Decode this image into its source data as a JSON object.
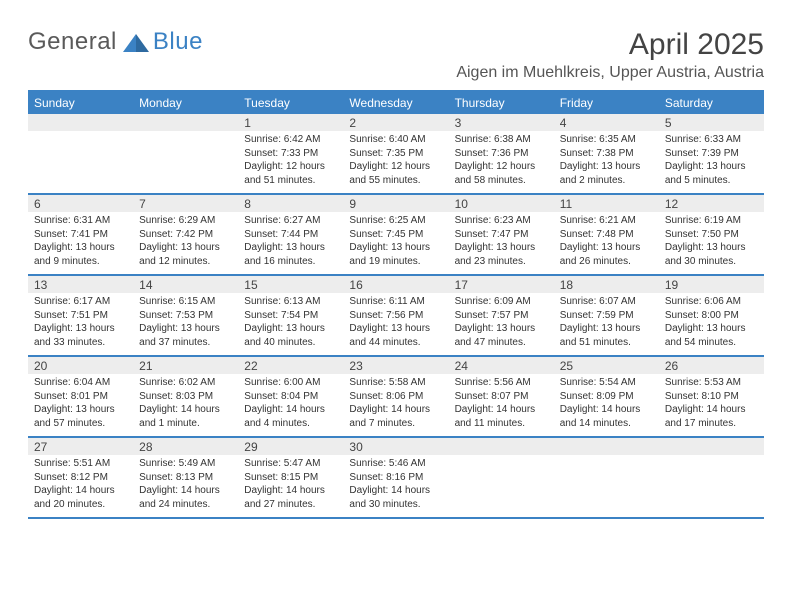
{
  "logo": {
    "part1": "General",
    "part2": "Blue"
  },
  "title": "April 2025",
  "location": "Aigen im Muehlkreis, Upper Austria, Austria",
  "colors": {
    "accent": "#3b82c4",
    "daynum_bg": "#ededed",
    "text": "#333333",
    "title_text": "#444444",
    "logo_gray": "#5a5a5a",
    "background": "#ffffff"
  },
  "daysOfWeek": [
    "Sunday",
    "Monday",
    "Tuesday",
    "Wednesday",
    "Thursday",
    "Friday",
    "Saturday"
  ],
  "grid": {
    "cols": 7,
    "rows": 5
  },
  "weeks": [
    [
      null,
      null,
      {
        "n": "1",
        "sr": "Sunrise: 6:42 AM",
        "ss": "Sunset: 7:33 PM",
        "dl": "Daylight: 12 hours and 51 minutes."
      },
      {
        "n": "2",
        "sr": "Sunrise: 6:40 AM",
        "ss": "Sunset: 7:35 PM",
        "dl": "Daylight: 12 hours and 55 minutes."
      },
      {
        "n": "3",
        "sr": "Sunrise: 6:38 AM",
        "ss": "Sunset: 7:36 PM",
        "dl": "Daylight: 12 hours and 58 minutes."
      },
      {
        "n": "4",
        "sr": "Sunrise: 6:35 AM",
        "ss": "Sunset: 7:38 PM",
        "dl": "Daylight: 13 hours and 2 minutes."
      },
      {
        "n": "5",
        "sr": "Sunrise: 6:33 AM",
        "ss": "Sunset: 7:39 PM",
        "dl": "Daylight: 13 hours and 5 minutes."
      }
    ],
    [
      {
        "n": "6",
        "sr": "Sunrise: 6:31 AM",
        "ss": "Sunset: 7:41 PM",
        "dl": "Daylight: 13 hours and 9 minutes."
      },
      {
        "n": "7",
        "sr": "Sunrise: 6:29 AM",
        "ss": "Sunset: 7:42 PM",
        "dl": "Daylight: 13 hours and 12 minutes."
      },
      {
        "n": "8",
        "sr": "Sunrise: 6:27 AM",
        "ss": "Sunset: 7:44 PM",
        "dl": "Daylight: 13 hours and 16 minutes."
      },
      {
        "n": "9",
        "sr": "Sunrise: 6:25 AM",
        "ss": "Sunset: 7:45 PM",
        "dl": "Daylight: 13 hours and 19 minutes."
      },
      {
        "n": "10",
        "sr": "Sunrise: 6:23 AM",
        "ss": "Sunset: 7:47 PM",
        "dl": "Daylight: 13 hours and 23 minutes."
      },
      {
        "n": "11",
        "sr": "Sunrise: 6:21 AM",
        "ss": "Sunset: 7:48 PM",
        "dl": "Daylight: 13 hours and 26 minutes."
      },
      {
        "n": "12",
        "sr": "Sunrise: 6:19 AM",
        "ss": "Sunset: 7:50 PM",
        "dl": "Daylight: 13 hours and 30 minutes."
      }
    ],
    [
      {
        "n": "13",
        "sr": "Sunrise: 6:17 AM",
        "ss": "Sunset: 7:51 PM",
        "dl": "Daylight: 13 hours and 33 minutes."
      },
      {
        "n": "14",
        "sr": "Sunrise: 6:15 AM",
        "ss": "Sunset: 7:53 PM",
        "dl": "Daylight: 13 hours and 37 minutes."
      },
      {
        "n": "15",
        "sr": "Sunrise: 6:13 AM",
        "ss": "Sunset: 7:54 PM",
        "dl": "Daylight: 13 hours and 40 minutes."
      },
      {
        "n": "16",
        "sr": "Sunrise: 6:11 AM",
        "ss": "Sunset: 7:56 PM",
        "dl": "Daylight: 13 hours and 44 minutes."
      },
      {
        "n": "17",
        "sr": "Sunrise: 6:09 AM",
        "ss": "Sunset: 7:57 PM",
        "dl": "Daylight: 13 hours and 47 minutes."
      },
      {
        "n": "18",
        "sr": "Sunrise: 6:07 AM",
        "ss": "Sunset: 7:59 PM",
        "dl": "Daylight: 13 hours and 51 minutes."
      },
      {
        "n": "19",
        "sr": "Sunrise: 6:06 AM",
        "ss": "Sunset: 8:00 PM",
        "dl": "Daylight: 13 hours and 54 minutes."
      }
    ],
    [
      {
        "n": "20",
        "sr": "Sunrise: 6:04 AM",
        "ss": "Sunset: 8:01 PM",
        "dl": "Daylight: 13 hours and 57 minutes."
      },
      {
        "n": "21",
        "sr": "Sunrise: 6:02 AM",
        "ss": "Sunset: 8:03 PM",
        "dl": "Daylight: 14 hours and 1 minute."
      },
      {
        "n": "22",
        "sr": "Sunrise: 6:00 AM",
        "ss": "Sunset: 8:04 PM",
        "dl": "Daylight: 14 hours and 4 minutes."
      },
      {
        "n": "23",
        "sr": "Sunrise: 5:58 AM",
        "ss": "Sunset: 8:06 PM",
        "dl": "Daylight: 14 hours and 7 minutes."
      },
      {
        "n": "24",
        "sr": "Sunrise: 5:56 AM",
        "ss": "Sunset: 8:07 PM",
        "dl": "Daylight: 14 hours and 11 minutes."
      },
      {
        "n": "25",
        "sr": "Sunrise: 5:54 AM",
        "ss": "Sunset: 8:09 PM",
        "dl": "Daylight: 14 hours and 14 minutes."
      },
      {
        "n": "26",
        "sr": "Sunrise: 5:53 AM",
        "ss": "Sunset: 8:10 PM",
        "dl": "Daylight: 14 hours and 17 minutes."
      }
    ],
    [
      {
        "n": "27",
        "sr": "Sunrise: 5:51 AM",
        "ss": "Sunset: 8:12 PM",
        "dl": "Daylight: 14 hours and 20 minutes."
      },
      {
        "n": "28",
        "sr": "Sunrise: 5:49 AM",
        "ss": "Sunset: 8:13 PM",
        "dl": "Daylight: 14 hours and 24 minutes."
      },
      {
        "n": "29",
        "sr": "Sunrise: 5:47 AM",
        "ss": "Sunset: 8:15 PM",
        "dl": "Daylight: 14 hours and 27 minutes."
      },
      {
        "n": "30",
        "sr": "Sunrise: 5:46 AM",
        "ss": "Sunset: 8:16 PM",
        "dl": "Daylight: 14 hours and 30 minutes."
      },
      null,
      null,
      null
    ]
  ]
}
